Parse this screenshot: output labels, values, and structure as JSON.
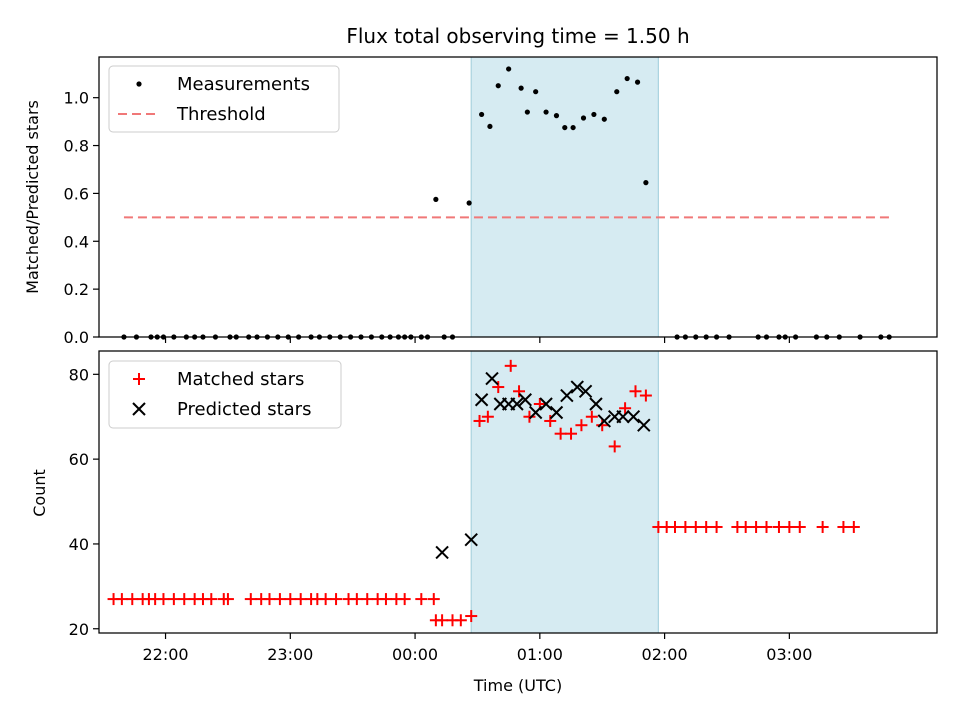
{
  "chart_data": [
    {
      "type": "scatter",
      "title": "Flux total observing time = 1.50 h",
      "xlabel": "",
      "ylabel": "Matched/Predicted stars",
      "xlim": [
        "21:28",
        "04:11"
      ],
      "ylim": [
        0,
        1.17
      ],
      "yticks": [
        0.0,
        0.2,
        0.4,
        0.6,
        0.8,
        1.0
      ],
      "ytick_labels": [
        "0.0",
        "0.2",
        "0.4",
        "0.6",
        "0.8",
        "1.0"
      ],
      "xticks": [
        "22:00",
        "23:00",
        "00:00",
        "01:00",
        "02:00",
        "03:00"
      ],
      "xtick_labels": [
        "",
        "",
        "",
        "",
        "",
        ""
      ],
      "grid": false,
      "legend": {
        "position": "top-left"
      },
      "shaded_interval": [
        "00:27",
        "01:57"
      ],
      "series": [
        {
          "name": "Measurements",
          "marker": "dot",
          "color": "#000000",
          "points": [
            [
              "21:40",
              0
            ],
            [
              "21:46",
              0
            ],
            [
              "21:53",
              0
            ],
            [
              "21:56",
              0
            ],
            [
              "21:59",
              0
            ],
            [
              "22:04",
              0
            ],
            [
              "22:10",
              0
            ],
            [
              "22:14",
              0
            ],
            [
              "22:18",
              0
            ],
            [
              "22:24",
              0
            ],
            [
              "22:31",
              0
            ],
            [
              "22:34",
              0
            ],
            [
              "22:40",
              0
            ],
            [
              "22:44",
              0
            ],
            [
              "22:49",
              0
            ],
            [
              "22:54",
              0
            ],
            [
              "22:59",
              0
            ],
            [
              "23:04",
              0
            ],
            [
              "23:10",
              0
            ],
            [
              "23:14",
              0
            ],
            [
              "23:19",
              0
            ],
            [
              "23:24",
              0
            ],
            [
              "23:29",
              0
            ],
            [
              "23:34",
              0
            ],
            [
              "23:39",
              0
            ],
            [
              "23:44",
              0
            ],
            [
              "23:48",
              0
            ],
            [
              "23:52",
              0
            ],
            [
              "23:55",
              0
            ],
            [
              "23:58",
              0
            ],
            [
              "00:03",
              0
            ],
            [
              "00:06",
              0
            ],
            [
              "00:10",
              0.575
            ],
            [
              "00:14",
              0
            ],
            [
              "00:18",
              0
            ],
            [
              "00:26",
              0.56
            ],
            [
              "00:32",
              0.93
            ],
            [
              "00:36",
              0.88
            ],
            [
              "00:40",
              1.05
            ],
            [
              "00:45",
              1.12
            ],
            [
              "00:51",
              1.04
            ],
            [
              "00:54",
              0.94
            ],
            [
              "00:58",
              1.025
            ],
            [
              "01:03",
              0.94
            ],
            [
              "01:08",
              0.925
            ],
            [
              "01:12",
              0.875
            ],
            [
              "01:16",
              0.875
            ],
            [
              "01:21",
              0.915
            ],
            [
              "01:26",
              0.93
            ],
            [
              "01:31",
              0.91
            ],
            [
              "01:37",
              1.025
            ],
            [
              "01:42",
              1.08
            ],
            [
              "01:47",
              1.065
            ],
            [
              "01:51",
              0.645
            ],
            [
              "02:06",
              0
            ],
            [
              "02:10",
              0
            ],
            [
              "02:15",
              0
            ],
            [
              "02:20",
              0
            ],
            [
              "02:25",
              0
            ],
            [
              "02:31",
              0
            ],
            [
              "02:45",
              0
            ],
            [
              "02:49",
              0
            ],
            [
              "02:55",
              0
            ],
            [
              "02:58",
              0
            ],
            [
              "03:03",
              0
            ],
            [
              "03:13",
              0
            ],
            [
              "03:18",
              0
            ],
            [
              "03:24",
              0
            ],
            [
              "03:34",
              0
            ],
            [
              "03:44",
              0
            ],
            [
              "03:48",
              0
            ]
          ]
        },
        {
          "name": "Threshold",
          "marker": "dashed-line",
          "color": "#f07878",
          "points": [
            [
              "21:40",
              0.5
            ],
            [
              "03:48",
              0.5
            ]
          ]
        }
      ]
    },
    {
      "type": "scatter",
      "title": "",
      "xlabel": "Time (UTC)",
      "ylabel": "Count",
      "xlim": [
        "21:28",
        "04:11"
      ],
      "ylim": [
        19,
        85.5
      ],
      "yticks": [
        20,
        40,
        60,
        80
      ],
      "ytick_labels": [
        "20",
        "40",
        "60",
        "80"
      ],
      "xticks": [
        "22:00",
        "23:00",
        "00:00",
        "01:00",
        "02:00",
        "03:00"
      ],
      "xtick_labels": [
        "22:00",
        "23:00",
        "00:00",
        "01:00",
        "02:00",
        "03:00"
      ],
      "grid": false,
      "legend": {
        "position": "top-left"
      },
      "shaded_interval": [
        "00:27",
        "01:57"
      ],
      "series": [
        {
          "name": "Matched stars",
          "marker": "plus",
          "color": "#ff0000",
          "points": [
            [
              "21:35",
              27
            ],
            [
              "21:39",
              27
            ],
            [
              "21:44",
              27
            ],
            [
              "21:49",
              27
            ],
            [
              "21:52",
              27
            ],
            [
              "21:55",
              27
            ],
            [
              "21:59",
              27
            ],
            [
              "22:04",
              27
            ],
            [
              "22:09",
              27
            ],
            [
              "22:14",
              27
            ],
            [
              "22:18",
              27
            ],
            [
              "22:22",
              27
            ],
            [
              "22:28",
              27
            ],
            [
              "22:30",
              27
            ],
            [
              "22:41",
              27
            ],
            [
              "22:46",
              27
            ],
            [
              "22:50",
              27
            ],
            [
              "22:55",
              27
            ],
            [
              "23:00",
              27
            ],
            [
              "23:05",
              27
            ],
            [
              "23:10",
              27
            ],
            [
              "23:13",
              27
            ],
            [
              "23:17",
              27
            ],
            [
              "23:22",
              27
            ],
            [
              "23:28",
              27
            ],
            [
              "23:32",
              27
            ],
            [
              "23:37",
              27
            ],
            [
              "23:42",
              27
            ],
            [
              "23:46",
              27
            ],
            [
              "23:51",
              27
            ],
            [
              "23:55",
              27
            ],
            [
              "00:03",
              27
            ],
            [
              "00:09",
              27
            ],
            [
              "00:10",
              22
            ],
            [
              "00:13",
              22
            ],
            [
              "00:18",
              22
            ],
            [
              "00:22",
              22
            ],
            [
              "00:27",
              23
            ],
            [
              "00:31",
              69
            ],
            [
              "00:35",
              70
            ],
            [
              "00:40",
              77
            ],
            [
              "00:46",
              82
            ],
            [
              "00:50",
              76
            ],
            [
              "00:55",
              70
            ],
            [
              "01:00",
              73
            ],
            [
              "01:05",
              69
            ],
            [
              "01:10",
              66
            ],
            [
              "01:15",
              66
            ],
            [
              "01:20",
              68
            ],
            [
              "01:25",
              70
            ],
            [
              "01:30",
              68
            ],
            [
              "01:36",
              63
            ],
            [
              "01:41",
              72
            ],
            [
              "01:46",
              76
            ],
            [
              "01:51",
              75
            ],
            [
              "01:57",
              44
            ],
            [
              "02:01",
              44
            ],
            [
              "02:05",
              44
            ],
            [
              "02:10",
              44
            ],
            [
              "02:15",
              44
            ],
            [
              "02:20",
              44
            ],
            [
              "02:25",
              44
            ],
            [
              "02:35",
              44
            ],
            [
              "02:39",
              44
            ],
            [
              "02:44",
              44
            ],
            [
              "02:49",
              44
            ],
            [
              "02:55",
              44
            ],
            [
              "03:00",
              44
            ],
            [
              "03:05",
              44
            ],
            [
              "03:16",
              44
            ],
            [
              "03:26",
              44
            ],
            [
              "03:31",
              44
            ]
          ]
        },
        {
          "name": "Predicted stars",
          "marker": "x",
          "color": "#000000",
          "points": [
            [
              "00:13",
              38
            ],
            [
              "00:27",
              41
            ],
            [
              "00:32",
              74
            ],
            [
              "00:37",
              79
            ],
            [
              "00:41",
              73
            ],
            [
              "00:45",
              73
            ],
            [
              "00:49",
              73
            ],
            [
              "00:53",
              74
            ],
            [
              "00:58",
              71
            ],
            [
              "01:03",
              73
            ],
            [
              "01:08",
              71
            ],
            [
              "01:13",
              75
            ],
            [
              "01:18",
              77
            ],
            [
              "01:22",
              76
            ],
            [
              "01:27",
              73
            ],
            [
              "01:31",
              69
            ],
            [
              "01:36",
              70
            ],
            [
              "01:40",
              70
            ],
            [
              "01:45",
              70
            ],
            [
              "01:50",
              68
            ]
          ]
        }
      ]
    }
  ]
}
